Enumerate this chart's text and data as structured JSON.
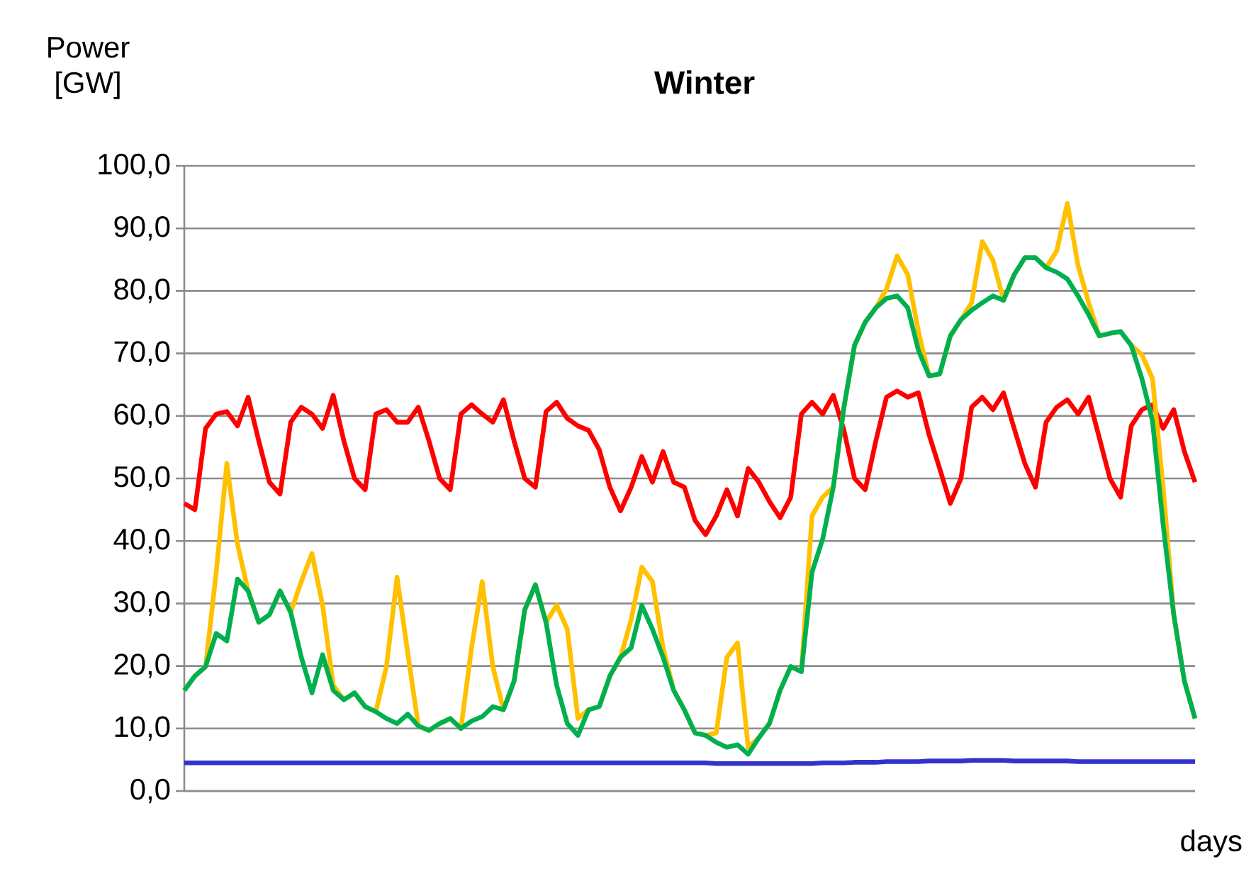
{
  "chart_data": {
    "type": "line",
    "title": "Winter",
    "xlabel": "days",
    "ylabel": "Power [GW]",
    "categories": [
      null,
      null,
      null,
      null,
      null,
      null,
      null,
      null,
      null,
      null,
      null,
      null,
      null,
      null,
      null,
      null,
      null,
      null,
      null,
      null,
      null,
      null,
      null,
      null,
      null,
      null,
      null,
      null,
      null,
      null,
      null,
      null,
      null,
      null,
      null,
      null,
      null,
      null,
      null,
      null,
      null,
      null,
      null,
      null,
      null,
      null,
      null,
      null,
      null,
      null,
      null,
      null,
      null,
      null,
      null,
      null,
      null,
      null,
      null,
      null,
      null,
      null,
      null,
      null,
      null,
      null,
      null,
      null,
      null,
      null,
      null,
      null,
      null,
      null,
      null,
      null,
      null,
      null,
      null,
      null,
      null,
      null,
      null,
      null,
      null,
      null,
      null,
      null,
      null,
      null,
      null,
      null,
      null,
      null,
      null,
      null
    ],
    "series": [
      {
        "color": "#3333cc",
        "values": [
          4.5,
          4.5,
          4.5,
          4.5,
          4.5,
          4.5,
          4.5,
          4.5,
          4.5,
          4.5,
          4.5,
          4.5,
          4.5,
          4.5,
          4.5,
          4.5,
          4.5,
          4.5,
          4.5,
          4.5,
          4.5,
          4.5,
          4.5,
          4.5,
          4.5,
          4.5,
          4.5,
          4.5,
          4.5,
          4.5,
          4.5,
          4.5,
          4.5,
          4.5,
          4.5,
          4.5,
          4.5,
          4.5,
          4.5,
          4.5,
          4.5,
          4.5,
          4.5,
          4.5,
          4.5,
          4.5,
          4.5,
          4.5,
          4.5,
          4.5,
          4.4,
          4.4,
          4.4,
          4.4,
          4.4,
          4.4,
          4.4,
          4.4,
          4.4,
          4.4,
          4.5,
          4.5,
          4.5,
          4.6,
          4.6,
          4.6,
          4.7,
          4.7,
          4.7,
          4.7,
          4.8,
          4.8,
          4.8,
          4.8,
          4.9,
          4.9,
          4.9,
          4.9,
          4.8,
          4.8,
          4.8,
          4.8,
          4.8,
          4.8,
          4.7,
          4.7,
          4.7,
          4.7,
          4.7,
          4.7,
          4.7,
          4.7,
          4.7,
          4.7,
          4.7,
          4.7
        ]
      },
      {
        "color": "#ff0000",
        "values": [
          46,
          45,
          58,
          60.3,
          60.7,
          58.4,
          63,
          56,
          49.4,
          47.5,
          59,
          61.4,
          60.3,
          58,
          63.3,
          56,
          50,
          48.2,
          60.3,
          61,
          59,
          59,
          61.4,
          56,
          50,
          48.2,
          60.3,
          61.8,
          60.3,
          59,
          62.6,
          56,
          50,
          48.6,
          60.7,
          62.2,
          59.6,
          58.4,
          57.7,
          54.6,
          48.6,
          44.8,
          48.6,
          53.5,
          49.4,
          54.3,
          49.4,
          48.6,
          43.3,
          41,
          44,
          48.2,
          44,
          51.6,
          49.4,
          46.3,
          43.7,
          47,
          60.3,
          62.2,
          60.3,
          63.3,
          57.7,
          50,
          48.2,
          56,
          63,
          64,
          63,
          63.7,
          57,
          51.6,
          46,
          50,
          61.4,
          63,
          61,
          63.7,
          58,
          52.4,
          48.6,
          59,
          61.4,
          62.6,
          60.3,
          63,
          56.5,
          50,
          47,
          58.4,
          61,
          61.8,
          58,
          61,
          54.3,
          49.4
        ]
      },
      {
        "color": "#ffc000",
        "values": [
          16.1,
          18.4,
          19.9,
          35,
          52.4,
          39.5,
          32,
          27,
          28.2,
          32,
          28.6,
          33.5,
          38,
          29.7,
          16.9,
          14.6,
          15.7,
          13.5,
          12.7,
          19.9,
          34.2,
          22.1,
          10.4,
          9.7,
          10.8,
          11.6,
          10,
          22.9,
          33.5,
          19.9,
          13,
          17.6,
          29,
          33,
          27,
          29.7,
          25.9,
          11.6,
          13,
          13.5,
          18.4,
          21.4,
          27.4,
          35.8,
          33.5,
          22.9,
          16.1,
          13,
          9.3,
          8.9,
          9.3,
          21.4,
          23.7,
          7,
          8.5,
          10.8,
          16.1,
          19.9,
          19.1,
          44,
          47,
          48.6,
          61.4,
          71.3,
          75,
          77.3,
          80.3,
          85.6,
          82.6,
          73.5,
          66.4,
          66.7,
          72.8,
          75.4,
          78.1,
          87.9,
          84.9,
          78.5,
          82.6,
          85.3,
          85.3,
          83.7,
          86.4,
          94,
          84.1,
          78.1,
          72.8,
          73.2,
          73.5,
          71.3,
          69.8,
          66,
          48.6,
          28.2,
          17.6,
          11.6
        ]
      },
      {
        "color": "#00b050",
        "values": [
          16.1,
          18.4,
          19.9,
          25.2,
          24,
          33.9,
          32,
          27,
          28.2,
          32,
          28.6,
          21.4,
          15.7,
          21.8,
          16.1,
          14.6,
          15.7,
          13.5,
          12.7,
          11.6,
          10.8,
          12.3,
          10.4,
          9.7,
          10.8,
          11.6,
          10,
          11.2,
          11.9,
          13.5,
          13,
          17.6,
          29,
          33,
          27,
          16.9,
          10.8,
          8.9,
          13,
          13.5,
          18.4,
          21.4,
          22.9,
          29.7,
          25.9,
          21.4,
          16.1,
          13,
          9.3,
          8.9,
          7.8,
          7,
          7.4,
          5.9,
          8.5,
          10.8,
          16.1,
          19.9,
          19.1,
          35,
          40.3,
          48.6,
          61.4,
          71.3,
          75,
          77.3,
          78.8,
          79.2,
          77.3,
          70.5,
          66.4,
          66.7,
          72.8,
          75.4,
          76.9,
          78.1,
          79.2,
          78.5,
          82.6,
          85.3,
          85.3,
          83.7,
          83,
          81.9,
          79.2,
          76.2,
          72.8,
          73.2,
          73.5,
          71.3,
          66,
          59.2,
          42.6,
          28.2,
          17.6,
          11.6
        ]
      }
    ],
    "ylim": [
      0,
      100
    ],
    "yticks": [
      {
        "value": 0,
        "label": "0,0"
      },
      {
        "value": 10,
        "label": "10,0"
      },
      {
        "value": 20,
        "label": "20,0"
      },
      {
        "value": 30,
        "label": "30,0"
      },
      {
        "value": 40,
        "label": "40,0"
      },
      {
        "value": 50,
        "label": "50,0"
      },
      {
        "value": 60,
        "label": "60,0"
      },
      {
        "value": 70,
        "label": "70,0"
      },
      {
        "value": 80,
        "label": "80,0"
      },
      {
        "value": 90,
        "label": "90,0"
      },
      {
        "value": 100,
        "label": "100,0"
      }
    ],
    "grid": "y",
    "tick_labels": "y",
    "marker": "none",
    "line_style": "solid"
  }
}
